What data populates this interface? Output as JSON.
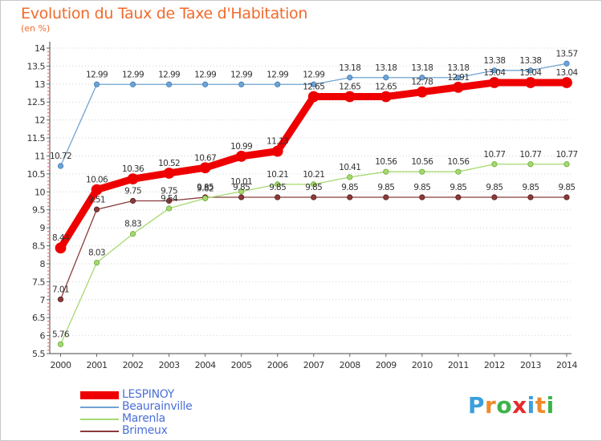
{
  "header": {
    "title": "Evolution du Taux de Taxe d'Habitation",
    "subtitle": "(en %)"
  },
  "brand": {
    "letters": [
      "P",
      "r",
      "o",
      "x",
      "i",
      "t",
      "i"
    ],
    "letter_colors": [
      "#3b9fdc",
      "#f08a2a",
      "#3bb34a",
      "#e8292c",
      "#3b9fdc",
      "#f08a2a",
      "#3bb34a"
    ]
  },
  "chart_data": {
    "type": "line",
    "x": [
      "2000",
      "2001",
      "2002",
      "2003",
      "2004",
      "2005",
      "2006",
      "2007",
      "2008",
      "2009",
      "2010",
      "2011",
      "2012",
      "2013",
      "2014"
    ],
    "ylim": [
      5.5,
      14
    ],
    "yticks": [
      "5.5",
      "6",
      "6.5",
      "7",
      "7.5",
      "8",
      "8.5",
      "9",
      "9.5",
      "10",
      "10.5",
      "11",
      "11.5",
      "12",
      "12.5",
      "13",
      "13.5",
      "14"
    ],
    "grid": "horizontal-dotted",
    "legend_position": "bottom-left",
    "series": [
      {
        "name": "LESPINOY",
        "color": "#ee0000",
        "values": [
          8.44,
          10.06,
          10.36,
          10.52,
          10.67,
          10.99,
          11.13,
          12.65,
          12.65,
          12.65,
          12.78,
          12.91,
          13.04,
          13.04,
          13.04
        ],
        "labels": [
          "8.44",
          "10.06",
          "10.36",
          "10.52",
          "10.67",
          "10.99",
          "11.13",
          "12.65",
          "12.65",
          "12.65",
          "12.78",
          "12.91",
          "13.04",
          "13.04",
          "13.04"
        ]
      },
      {
        "name": "Beaurainville",
        "color": "#6fa3d2",
        "values": [
          10.72,
          12.99,
          12.99,
          12.99,
          12.99,
          12.99,
          12.99,
          12.99,
          13.18,
          13.18,
          13.18,
          13.18,
          13.38,
          13.38,
          13.57
        ],
        "labels": [
          "10.72",
          "12.99",
          "12.99",
          "12.99",
          "12.99",
          "12.99",
          "12.99",
          "12.99",
          "13.18",
          "13.18",
          "13.18",
          "13.18",
          "13.38",
          "13.38",
          "13.57"
        ]
      },
      {
        "name": "Marenla",
        "color": "#a5d96f",
        "values": [
          5.76,
          8.03,
          8.83,
          9.54,
          9.82,
          10.01,
          10.21,
          10.21,
          10.41,
          10.56,
          10.56,
          10.56,
          10.77,
          10.77,
          10.77
        ],
        "labels": [
          "5.76",
          "8.03",
          "8.83",
          "9.54",
          "9.82",
          "10.01",
          "10.21",
          "10.21",
          "10.41",
          "10.56",
          "10.56",
          "10.56",
          "10.77",
          "10.77",
          "10.77"
        ]
      },
      {
        "name": "Brimeux",
        "color": "#8a3a3a",
        "values": [
          7.01,
          9.51,
          9.75,
          9.75,
          9.85,
          9.85,
          9.85,
          9.85,
          9.85,
          9.85,
          9.85,
          9.85,
          9.85,
          9.85,
          9.85
        ],
        "labels": [
          "7.01",
          "9.51",
          "9.75",
          "9.75",
          "9.85",
          "9.85",
          "9.85",
          "9.85",
          "9.85",
          "9.85",
          "9.85",
          "9.85",
          "9.85",
          "9.85",
          "9.85"
        ]
      }
    ]
  }
}
